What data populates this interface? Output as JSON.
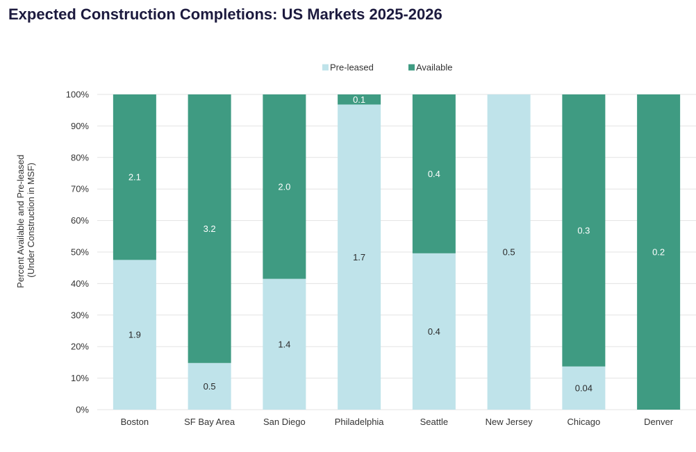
{
  "chart_data": {
    "type": "bar",
    "stacked": true,
    "title": "Expected Construction Completions: US Markets 2025-2026",
    "ylabel_lines": [
      "Percent Available and Pre-leased",
      "(Under Construction in MSF)"
    ],
    "ylim": [
      0,
      100
    ],
    "yticks": [
      "0%",
      "10%",
      "20%",
      "30%",
      "40%",
      "50%",
      "60%",
      "70%",
      "80%",
      "90%",
      "100%"
    ],
    "grid": true,
    "legend_position": "top-center",
    "categories": [
      "Boston",
      "SF Bay Area",
      "San Diego",
      "Philadelphia",
      "Seattle",
      "New Jersey",
      "Chicago",
      "Denver"
    ],
    "series": [
      {
        "name": "Pre-leased",
        "color": "#bfe3ea",
        "percent": [
          47.5,
          14.8,
          41.5,
          96.8,
          49.6,
          100,
          13.7,
          0
        ],
        "labels": [
          "1.9",
          "0.5",
          "1.4",
          "1.7",
          "0.4",
          "0.5",
          "0.04",
          ""
        ]
      },
      {
        "name": "Available",
        "color": "#3f9b82",
        "percent": [
          52.5,
          85.2,
          58.5,
          3.2,
          50.4,
          0,
          86.3,
          100
        ],
        "labels": [
          "2.1",
          "3.2",
          "2.0",
          "0.1",
          "0.4",
          "",
          "0.3",
          "0.2"
        ]
      }
    ]
  }
}
